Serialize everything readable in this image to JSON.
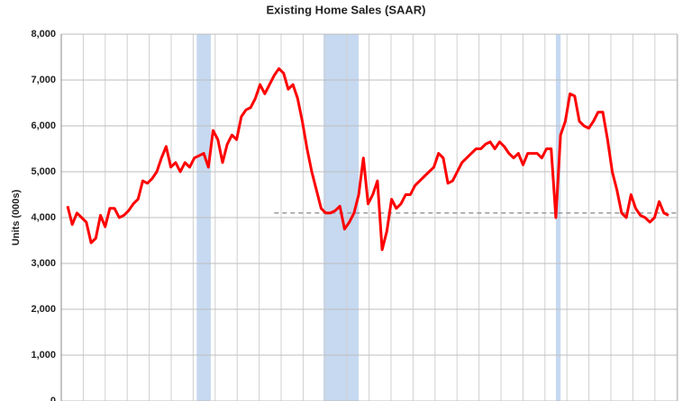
{
  "chart_data": {
    "type": "line",
    "title": "Existing Home Sales (SAAR)",
    "y_label": "Units (000s)",
    "ylim": [
      0,
      8000
    ],
    "yticks": [
      {
        "value": 0,
        "label": "0"
      },
      {
        "value": 1000,
        "label": "1,000"
      },
      {
        "value": 2000,
        "label": "2,000"
      },
      {
        "value": 3000,
        "label": "3,000"
      },
      {
        "value": 4000,
        "label": "4,000"
      },
      {
        "value": 5000,
        "label": "5,000"
      },
      {
        "value": 6000,
        "label": "6,000"
      },
      {
        "value": 7000,
        "label": "7,000"
      },
      {
        "value": 8000,
        "label": "8,000"
      }
    ],
    "grid": true,
    "color": "#ff0000",
    "shade_color": "#c6d9f1",
    "shaded_ranges": [
      [
        27.5,
        30.5
      ],
      [
        54.5,
        62
      ],
      [
        104,
        105
      ]
    ],
    "reference_line": {
      "value": 4100,
      "start": 44,
      "color": "#999999"
    },
    "values": [
      4250,
      3850,
      4100,
      4000,
      3900,
      3450,
      3550,
      4050,
      3800,
      4200,
      4200,
      4000,
      4050,
      4150,
      4300,
      4400,
      4800,
      4750,
      4850,
      5000,
      5300,
      5550,
      5100,
      5200,
      5000,
      5200,
      5100,
      5300,
      5350,
      5400,
      5100,
      5900,
      5700,
      5200,
      5600,
      5800,
      5700,
      6200,
      6350,
      6400,
      6600,
      6900,
      6700,
      6900,
      7100,
      7250,
      7150,
      6800,
      6900,
      6600,
      6100,
      5500,
      5000,
      4600,
      4200,
      4100,
      4100,
      4150,
      4250,
      3750,
      3900,
      4100,
      4500,
      5300,
      4300,
      4500,
      4800,
      3300,
      3700,
      4400,
      4200,
      4300,
      4500,
      4500,
      4700,
      4800,
      4900,
      5000,
      5100,
      5400,
      5300,
      4750,
      4800,
      5000,
      5200,
      5300,
      5400,
      5500,
      5500,
      5600,
      5650,
      5500,
      5650,
      5550,
      5400,
      5300,
      5400,
      5150,
      5400,
      5400,
      5400,
      5300,
      5500,
      5500,
      4000,
      5800,
      6100,
      6700,
      6650,
      6100,
      6000,
      5950,
      6100,
      6300,
      6300,
      5700,
      5000,
      4600,
      4100,
      4000,
      4500,
      4200,
      4050,
      4000,
      3900,
      4000,
      4350,
      4100,
      4050
    ]
  }
}
